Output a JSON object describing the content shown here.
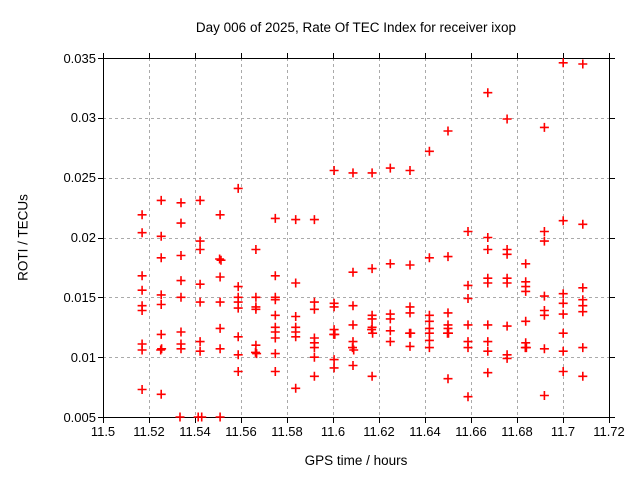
{
  "window": {
    "background": "#ffffff"
  },
  "chart_data": {
    "type": "scatter",
    "title": "Day 006 of 2025, Rate Of TEC Index for receiver ixop",
    "xlabel": "GPS time / hours",
    "ylabel": "ROTI / TECUs",
    "xlim": [
      11.5,
      11.72
    ],
    "ylim": [
      0.005,
      0.035
    ],
    "xticks": [
      11.5,
      11.52,
      11.54,
      11.56,
      11.58,
      11.6,
      11.62,
      11.64,
      11.66,
      11.68,
      11.7,
      11.72
    ],
    "yticks": [
      0.005,
      0.01,
      0.015,
      0.02,
      0.025,
      0.03,
      0.035
    ],
    "grid": true,
    "legend_position": "none",
    "marker": "plus",
    "colors": {
      "marker": "#ff0000",
      "frame": "#000000",
      "grid": "#aaaaaa",
      "text": "#000000"
    },
    "series": [
      {
        "name": "ROTI",
        "points": [
          [
            11.517,
            0.0219
          ],
          [
            11.517,
            0.0204
          ],
          [
            11.517,
            0.0168
          ],
          [
            11.517,
            0.0156
          ],
          [
            11.517,
            0.0143
          ],
          [
            11.517,
            0.0139
          ],
          [
            11.517,
            0.0111
          ],
          [
            11.517,
            0.0106
          ],
          [
            11.517,
            0.0073
          ],
          [
            11.5253,
            0.0231
          ],
          [
            11.5253,
            0.0201
          ],
          [
            11.5253,
            0.0183
          ],
          [
            11.5253,
            0.0152
          ],
          [
            11.5253,
            0.0144
          ],
          [
            11.5253,
            0.0119
          ],
          [
            11.5255,
            0.0107
          ],
          [
            11.5251,
            0.0106
          ],
          [
            11.5253,
            0.0069
          ],
          [
            11.5339,
            0.0229
          ],
          [
            11.5339,
            0.0212
          ],
          [
            11.5339,
            0.0185
          ],
          [
            11.5339,
            0.0164
          ],
          [
            11.5339,
            0.015
          ],
          [
            11.5339,
            0.0121
          ],
          [
            11.5339,
            0.0111
          ],
          [
            11.5339,
            0.0107
          ],
          [
            11.5335,
            0.005
          ],
          [
            11.5422,
            0.0231
          ],
          [
            11.5422,
            0.0197
          ],
          [
            11.5422,
            0.019
          ],
          [
            11.5422,
            0.0161
          ],
          [
            11.5422,
            0.0146
          ],
          [
            11.5422,
            0.0113
          ],
          [
            11.5422,
            0.0105
          ],
          [
            11.5414,
            0.005
          ],
          [
            11.5429,
            0.005
          ],
          [
            11.5509,
            0.0219
          ],
          [
            11.5507,
            0.0182
          ],
          [
            11.5513,
            0.0181
          ],
          [
            11.5509,
            0.0167
          ],
          [
            11.5509,
            0.0146
          ],
          [
            11.5509,
            0.0124
          ],
          [
            11.5509,
            0.0107
          ],
          [
            11.5509,
            0.005
          ],
          [
            11.5588,
            0.0241
          ],
          [
            11.5588,
            0.0159
          ],
          [
            11.5588,
            0.015
          ],
          [
            11.5588,
            0.0146
          ],
          [
            11.5588,
            0.0141
          ],
          [
            11.5588,
            0.0117
          ],
          [
            11.5588,
            0.0102
          ],
          [
            11.5588,
            0.0088
          ],
          [
            11.5665,
            0.019
          ],
          [
            11.5665,
            0.015
          ],
          [
            11.5665,
            0.0142
          ],
          [
            11.5665,
            0.014
          ],
          [
            11.5665,
            0.011
          ],
          [
            11.5663,
            0.0104
          ],
          [
            11.5668,
            0.0103
          ],
          [
            11.5749,
            0.0216
          ],
          [
            11.5749,
            0.0168
          ],
          [
            11.5749,
            0.015
          ],
          [
            11.5749,
            0.0148
          ],
          [
            11.5749,
            0.0135
          ],
          [
            11.5749,
            0.0125
          ],
          [
            11.5749,
            0.0121
          ],
          [
            11.5749,
            0.0116
          ],
          [
            11.5749,
            0.0103
          ],
          [
            11.5749,
            0.0088
          ],
          [
            11.5838,
            0.0215
          ],
          [
            11.5838,
            0.0162
          ],
          [
            11.5838,
            0.0134
          ],
          [
            11.5838,
            0.0125
          ],
          [
            11.5838,
            0.0121
          ],
          [
            11.5838,
            0.0117
          ],
          [
            11.5838,
            0.0074
          ],
          [
            11.5919,
            0.0215
          ],
          [
            11.5919,
            0.0146
          ],
          [
            11.5919,
            0.014
          ],
          [
            11.5919,
            0.0116
          ],
          [
            11.5919,
            0.0112
          ],
          [
            11.5919,
            0.0108
          ],
          [
            11.5919,
            0.01
          ],
          [
            11.5919,
            0.0084
          ],
          [
            11.6005,
            0.0256
          ],
          [
            11.6005,
            0.0145
          ],
          [
            11.6005,
            0.0142
          ],
          [
            11.6005,
            0.0123
          ],
          [
            11.6003,
            0.0119
          ],
          [
            11.6008,
            0.0119
          ],
          [
            11.6005,
            0.0098
          ],
          [
            11.6005,
            0.0091
          ],
          [
            11.6087,
            0.0254
          ],
          [
            11.6087,
            0.0171
          ],
          [
            11.6087,
            0.0143
          ],
          [
            11.6087,
            0.0127
          ],
          [
            11.6087,
            0.0113
          ],
          [
            11.6085,
            0.0108
          ],
          [
            11.609,
            0.0106
          ],
          [
            11.6087,
            0.0093
          ],
          [
            11.617,
            0.0254
          ],
          [
            11.617,
            0.0174
          ],
          [
            11.617,
            0.0135
          ],
          [
            11.617,
            0.0132
          ],
          [
            11.617,
            0.0125
          ],
          [
            11.6168,
            0.0123
          ],
          [
            11.6172,
            0.012
          ],
          [
            11.617,
            0.0084
          ],
          [
            11.6249,
            0.0258
          ],
          [
            11.6249,
            0.0178
          ],
          [
            11.6249,
            0.0136
          ],
          [
            11.6249,
            0.0132
          ],
          [
            11.6249,
            0.0122
          ],
          [
            11.6249,
            0.0113
          ],
          [
            11.6335,
            0.0256
          ],
          [
            11.6335,
            0.0177
          ],
          [
            11.6335,
            0.0142
          ],
          [
            11.6335,
            0.0137
          ],
          [
            11.6333,
            0.012
          ],
          [
            11.6338,
            0.012
          ],
          [
            11.6335,
            0.0109
          ],
          [
            11.6419,
            0.0272
          ],
          [
            11.6419,
            0.0183
          ],
          [
            11.6419,
            0.0135
          ],
          [
            11.6419,
            0.013
          ],
          [
            11.6419,
            0.0124
          ],
          [
            11.6419,
            0.012
          ],
          [
            11.6419,
            0.0114
          ],
          [
            11.6419,
            0.0108
          ],
          [
            11.65,
            0.0289
          ],
          [
            11.65,
            0.0184
          ],
          [
            11.65,
            0.0137
          ],
          [
            11.65,
            0.0127
          ],
          [
            11.65,
            0.0124
          ],
          [
            11.6498,
            0.012
          ],
          [
            11.6502,
            0.012
          ],
          [
            11.65,
            0.0082
          ],
          [
            11.6587,
            0.0205
          ],
          [
            11.6587,
            0.016
          ],
          [
            11.6587,
            0.0149
          ],
          [
            11.6587,
            0.0127
          ],
          [
            11.6587,
            0.0113
          ],
          [
            11.6587,
            0.0108
          ],
          [
            11.6587,
            0.0067
          ],
          [
            11.6673,
            0.0321
          ],
          [
            11.6673,
            0.02
          ],
          [
            11.6673,
            0.019
          ],
          [
            11.6673,
            0.0166
          ],
          [
            11.6673,
            0.0162
          ],
          [
            11.6673,
            0.0127
          ],
          [
            11.6673,
            0.0113
          ],
          [
            11.6673,
            0.0105
          ],
          [
            11.6673,
            0.0087
          ],
          [
            11.6757,
            0.0299
          ],
          [
            11.6757,
            0.019
          ],
          [
            11.6757,
            0.0186
          ],
          [
            11.6757,
            0.0166
          ],
          [
            11.6757,
            0.0162
          ],
          [
            11.6757,
            0.0126
          ],
          [
            11.6757,
            0.0102
          ],
          [
            11.6757,
            0.0099
          ],
          [
            11.6838,
            0.0178
          ],
          [
            11.6838,
            0.0163
          ],
          [
            11.6838,
            0.0159
          ],
          [
            11.6838,
            0.0155
          ],
          [
            11.6838,
            0.013
          ],
          [
            11.6838,
            0.0112
          ],
          [
            11.6836,
            0.0108
          ],
          [
            11.6841,
            0.0108
          ],
          [
            11.6919,
            0.0292
          ],
          [
            11.6919,
            0.0205
          ],
          [
            11.6919,
            0.0197
          ],
          [
            11.6919,
            0.0151
          ],
          [
            11.6919,
            0.0139
          ],
          [
            11.6919,
            0.0135
          ],
          [
            11.6919,
            0.0107
          ],
          [
            11.6919,
            0.0068
          ],
          [
            11.7001,
            0.0346
          ],
          [
            11.7001,
            0.0214
          ],
          [
            11.7001,
            0.0153
          ],
          [
            11.7001,
            0.0145
          ],
          [
            11.7001,
            0.0136
          ],
          [
            11.7001,
            0.012
          ],
          [
            11.7001,
            0.0105
          ],
          [
            11.7001,
            0.0088
          ],
          [
            11.7086,
            0.0345
          ],
          [
            11.7086,
            0.0211
          ],
          [
            11.7086,
            0.0158
          ],
          [
            11.7086,
            0.0148
          ],
          [
            11.7086,
            0.0143
          ],
          [
            11.7086,
            0.0138
          ],
          [
            11.7086,
            0.0108
          ],
          [
            11.7086,
            0.0084
          ]
        ]
      }
    ]
  }
}
